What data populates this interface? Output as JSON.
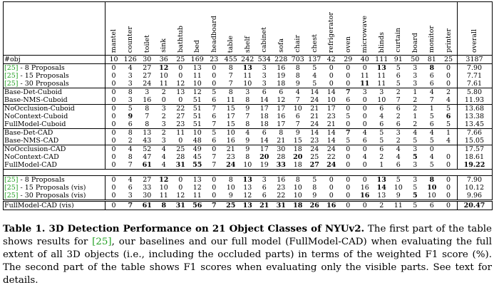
{
  "columns": [
    "mantel",
    "counter",
    "toilet",
    "sink",
    "bathtub",
    "bed",
    "headboard",
    "table",
    "shelf",
    "cabinet",
    "sofa",
    "chair",
    "chest",
    "refrigerator",
    "oven",
    "microwave",
    "blinds",
    "curtain",
    "board",
    "monitor",
    "printer",
    "overall"
  ],
  "obj_row": {
    "name": "#obj",
    "cells": [
      "10",
      "126",
      "30",
      "36",
      "25",
      "169",
      "23",
      "455",
      "242",
      "534",
      "228",
      "703",
      "137",
      "42",
      "29",
      "40",
      "111",
      "91",
      "50",
      "81",
      "25",
      "3187"
    ]
  },
  "groups": [
    {
      "rows": [
        {
          "cite": "[25]",
          "suffix": " - 8 Proposals",
          "cells": [
            "0",
            "4",
            "27",
            "12",
            "0",
            "13",
            "0",
            "8",
            "13",
            "3",
            "16",
            "8",
            "5",
            "0",
            "0",
            "0",
            "13",
            "5",
            "3",
            "8",
            "0",
            "7.90"
          ],
          "bold": [
            3,
            8,
            16,
            19
          ]
        },
        {
          "cite": "[25]",
          "suffix": " - 15 Proposals",
          "cells": [
            "0",
            "3",
            "27",
            "10",
            "0",
            "11",
            "0",
            "7",
            "11",
            "3",
            "19",
            "8",
            "4",
            "0",
            "0",
            "11",
            "11",
            "6",
            "3",
            "6",
            "0",
            "7.71"
          ],
          "bold": []
        },
        {
          "cite": "[25]",
          "suffix": " - 30 Proposals",
          "cells": [
            "0",
            "3",
            "24",
            "11",
            "12",
            "10",
            "0",
            "7",
            "10",
            "3",
            "18",
            "9",
            "5",
            "0",
            "0",
            "11",
            "11",
            "5",
            "3",
            "6",
            "0",
            "7.61"
          ],
          "bold": [
            15
          ]
        }
      ]
    },
    {
      "rows": [
        {
          "name": "Base-Det-Cuboid",
          "cells": [
            "0",
            "8",
            "3",
            "2",
            "13",
            "12",
            "5",
            "8",
            "3",
            "6",
            "6",
            "4",
            "14",
            "14",
            "7",
            "3",
            "3",
            "2",
            "1",
            "4",
            "2",
            "5.80"
          ],
          "bold": [
            14
          ]
        },
        {
          "name": "Base-NMS-Cuboid",
          "cells": [
            "0",
            "3",
            "16",
            "0",
            "0",
            "51",
            "6",
            "11",
            "8",
            "14",
            "12",
            "7",
            "24",
            "10",
            "6",
            "0",
            "10",
            "7",
            "2",
            "7",
            "4",
            "11.93"
          ],
          "bold": []
        }
      ]
    },
    {
      "rows": [
        {
          "name": "NoOcclusion-Cuboid",
          "cells": [
            "0",
            "5",
            "8",
            "3",
            "22",
            "51",
            "7",
            "15",
            "9",
            "17",
            "17",
            "10",
            "21",
            "17",
            "0",
            "0",
            "6",
            "6",
            "2",
            "1",
            "5",
            "13.68"
          ],
          "bold": []
        },
        {
          "name": "NoContext-Cuboid",
          "cells": [
            "0",
            "9",
            "7",
            "2",
            "27",
            "51",
            "6",
            "17",
            "7",
            "18",
            "16",
            "6",
            "21",
            "23",
            "5",
            "0",
            "4",
            "2",
            "1",
            "5",
            "6",
            "13.38"
          ],
          "bold": [
            1,
            20
          ]
        },
        {
          "name": "FullModel-Cuboid",
          "cells": [
            "0",
            "6",
            "8",
            "3",
            "23",
            "51",
            "7",
            "15",
            "8",
            "18",
            "17",
            "7",
            "24",
            "21",
            "0",
            "0",
            "6",
            "6",
            "2",
            "6",
            "5",
            "13.45"
          ],
          "bold": []
        }
      ]
    },
    {
      "rows": [
        {
          "name": "Base-Det-CAD",
          "cells": [
            "0",
            "8",
            "13",
            "2",
            "11",
            "10",
            "5",
            "10",
            "4",
            "6",
            "8",
            "9",
            "14",
            "14",
            "7",
            "4",
            "5",
            "3",
            "4",
            "4",
            "1",
            "7.66"
          ],
          "bold": [
            14
          ]
        },
        {
          "name": "Base-NMS-CAD",
          "cells": [
            "0",
            "2",
            "43",
            "3",
            "0",
            "48",
            "6",
            "16",
            "9",
            "14",
            "21",
            "15",
            "23",
            "14",
            "5",
            "6",
            "5",
            "2",
            "5",
            "5",
            "4",
            "15.05"
          ],
          "bold": []
        }
      ]
    },
    {
      "rows": [
        {
          "name": "NoOcclusion-CAD",
          "cells": [
            "0",
            "4",
            "52",
            "4",
            "25",
            "49",
            "0",
            "21",
            "9",
            "17",
            "30",
            "18",
            "24",
            "24",
            "0",
            "0",
            "6",
            "4",
            "3",
            "0",
            "",
            "17.57"
          ],
          "bold": []
        },
        {
          "name": "NoContext-CAD",
          "cells": [
            "0",
            "8",
            "47",
            "4",
            "28",
            "45",
            "7",
            "23",
            "8",
            "20",
            "28",
            "20",
            "25",
            "22",
            "0",
            "4",
            "2",
            "4",
            "5",
            "4",
            "0",
            "18.61"
          ],
          "bold": [
            9,
            11,
            18
          ]
        },
        {
          "name": "FullModel-CAD",
          "cells": [
            "0",
            "7",
            "61",
            "4",
            "31",
            "55",
            "7",
            "24",
            "10",
            "19",
            "33",
            "18",
            "27",
            "24",
            "0",
            "0",
            "1",
            "6",
            "3",
            "5",
            "0",
            "19.22"
          ],
          "bold": [
            2,
            4,
            5,
            7,
            10,
            12,
            13,
            21
          ]
        }
      ]
    }
  ],
  "vis_groups": [
    {
      "rows": [
        {
          "cite": "[25]",
          "suffix": " - 8 Proposals",
          "cells": [
            "0",
            "4",
            "27",
            "12",
            "0",
            "13",
            "0",
            "8",
            "13",
            "3",
            "16",
            "8",
            "5",
            "0",
            "0",
            "0",
            "13",
            "5",
            "3",
            "8",
            "0",
            "7.90"
          ],
          "bold": [
            3,
            8,
            16,
            19
          ]
        },
        {
          "cite": "[25]",
          "suffix": " - 15 Proposals (vis)",
          "cells": [
            "0",
            "6",
            "33",
            "10",
            "0",
            "12",
            "0",
            "10",
            "13",
            "6",
            "23",
            "10",
            "8",
            "0",
            "0",
            "16",
            "14",
            "10",
            "5",
            "10",
            "0",
            "10.12"
          ],
          "bold": [
            16,
            19
          ]
        },
        {
          "cite": "[25]",
          "suffix": " - 30 Proposals (vis)",
          "cells": [
            "0",
            "3",
            "30",
            "11",
            "12",
            "11",
            "0",
            "9",
            "12",
            "6",
            "22",
            "10",
            "9",
            "0",
            "0",
            "16",
            "13",
            "9",
            "5",
            "10",
            "0",
            "9.96"
          ],
          "bold": [
            15,
            18
          ]
        }
      ]
    },
    {
      "rows": [
        {
          "name": "FullModel-CAD (vis)",
          "cells": [
            "0",
            "7",
            "61",
            "8",
            "31",
            "56",
            "7",
            "25",
            "13",
            "21",
            "31",
            "18",
            "26",
            "16",
            "0",
            "0",
            "2",
            "11",
            "5",
            "6",
            "0",
            "20.47"
          ],
          "bold": [
            1,
            2,
            3,
            4,
            5,
            6,
            7,
            8,
            9,
            10,
            11,
            12,
            13,
            21
          ]
        }
      ]
    }
  ],
  "caption": {
    "title": "Table 1. 3D Detection Performance on 21 Object Classes of NYUv2.",
    "text_before_cite": " The first part of the table shows results for ",
    "cite": "[25]",
    "text_after_cite": ", our baselines and our full model (FullModel-CAD) when evaluating the full extent of all 3D objects (i.e., including the occluded parts) in terms of the weighted F1 score (%). The second part of the table shows F1 scores when evaluating only the visible parts. See text for details."
  }
}
